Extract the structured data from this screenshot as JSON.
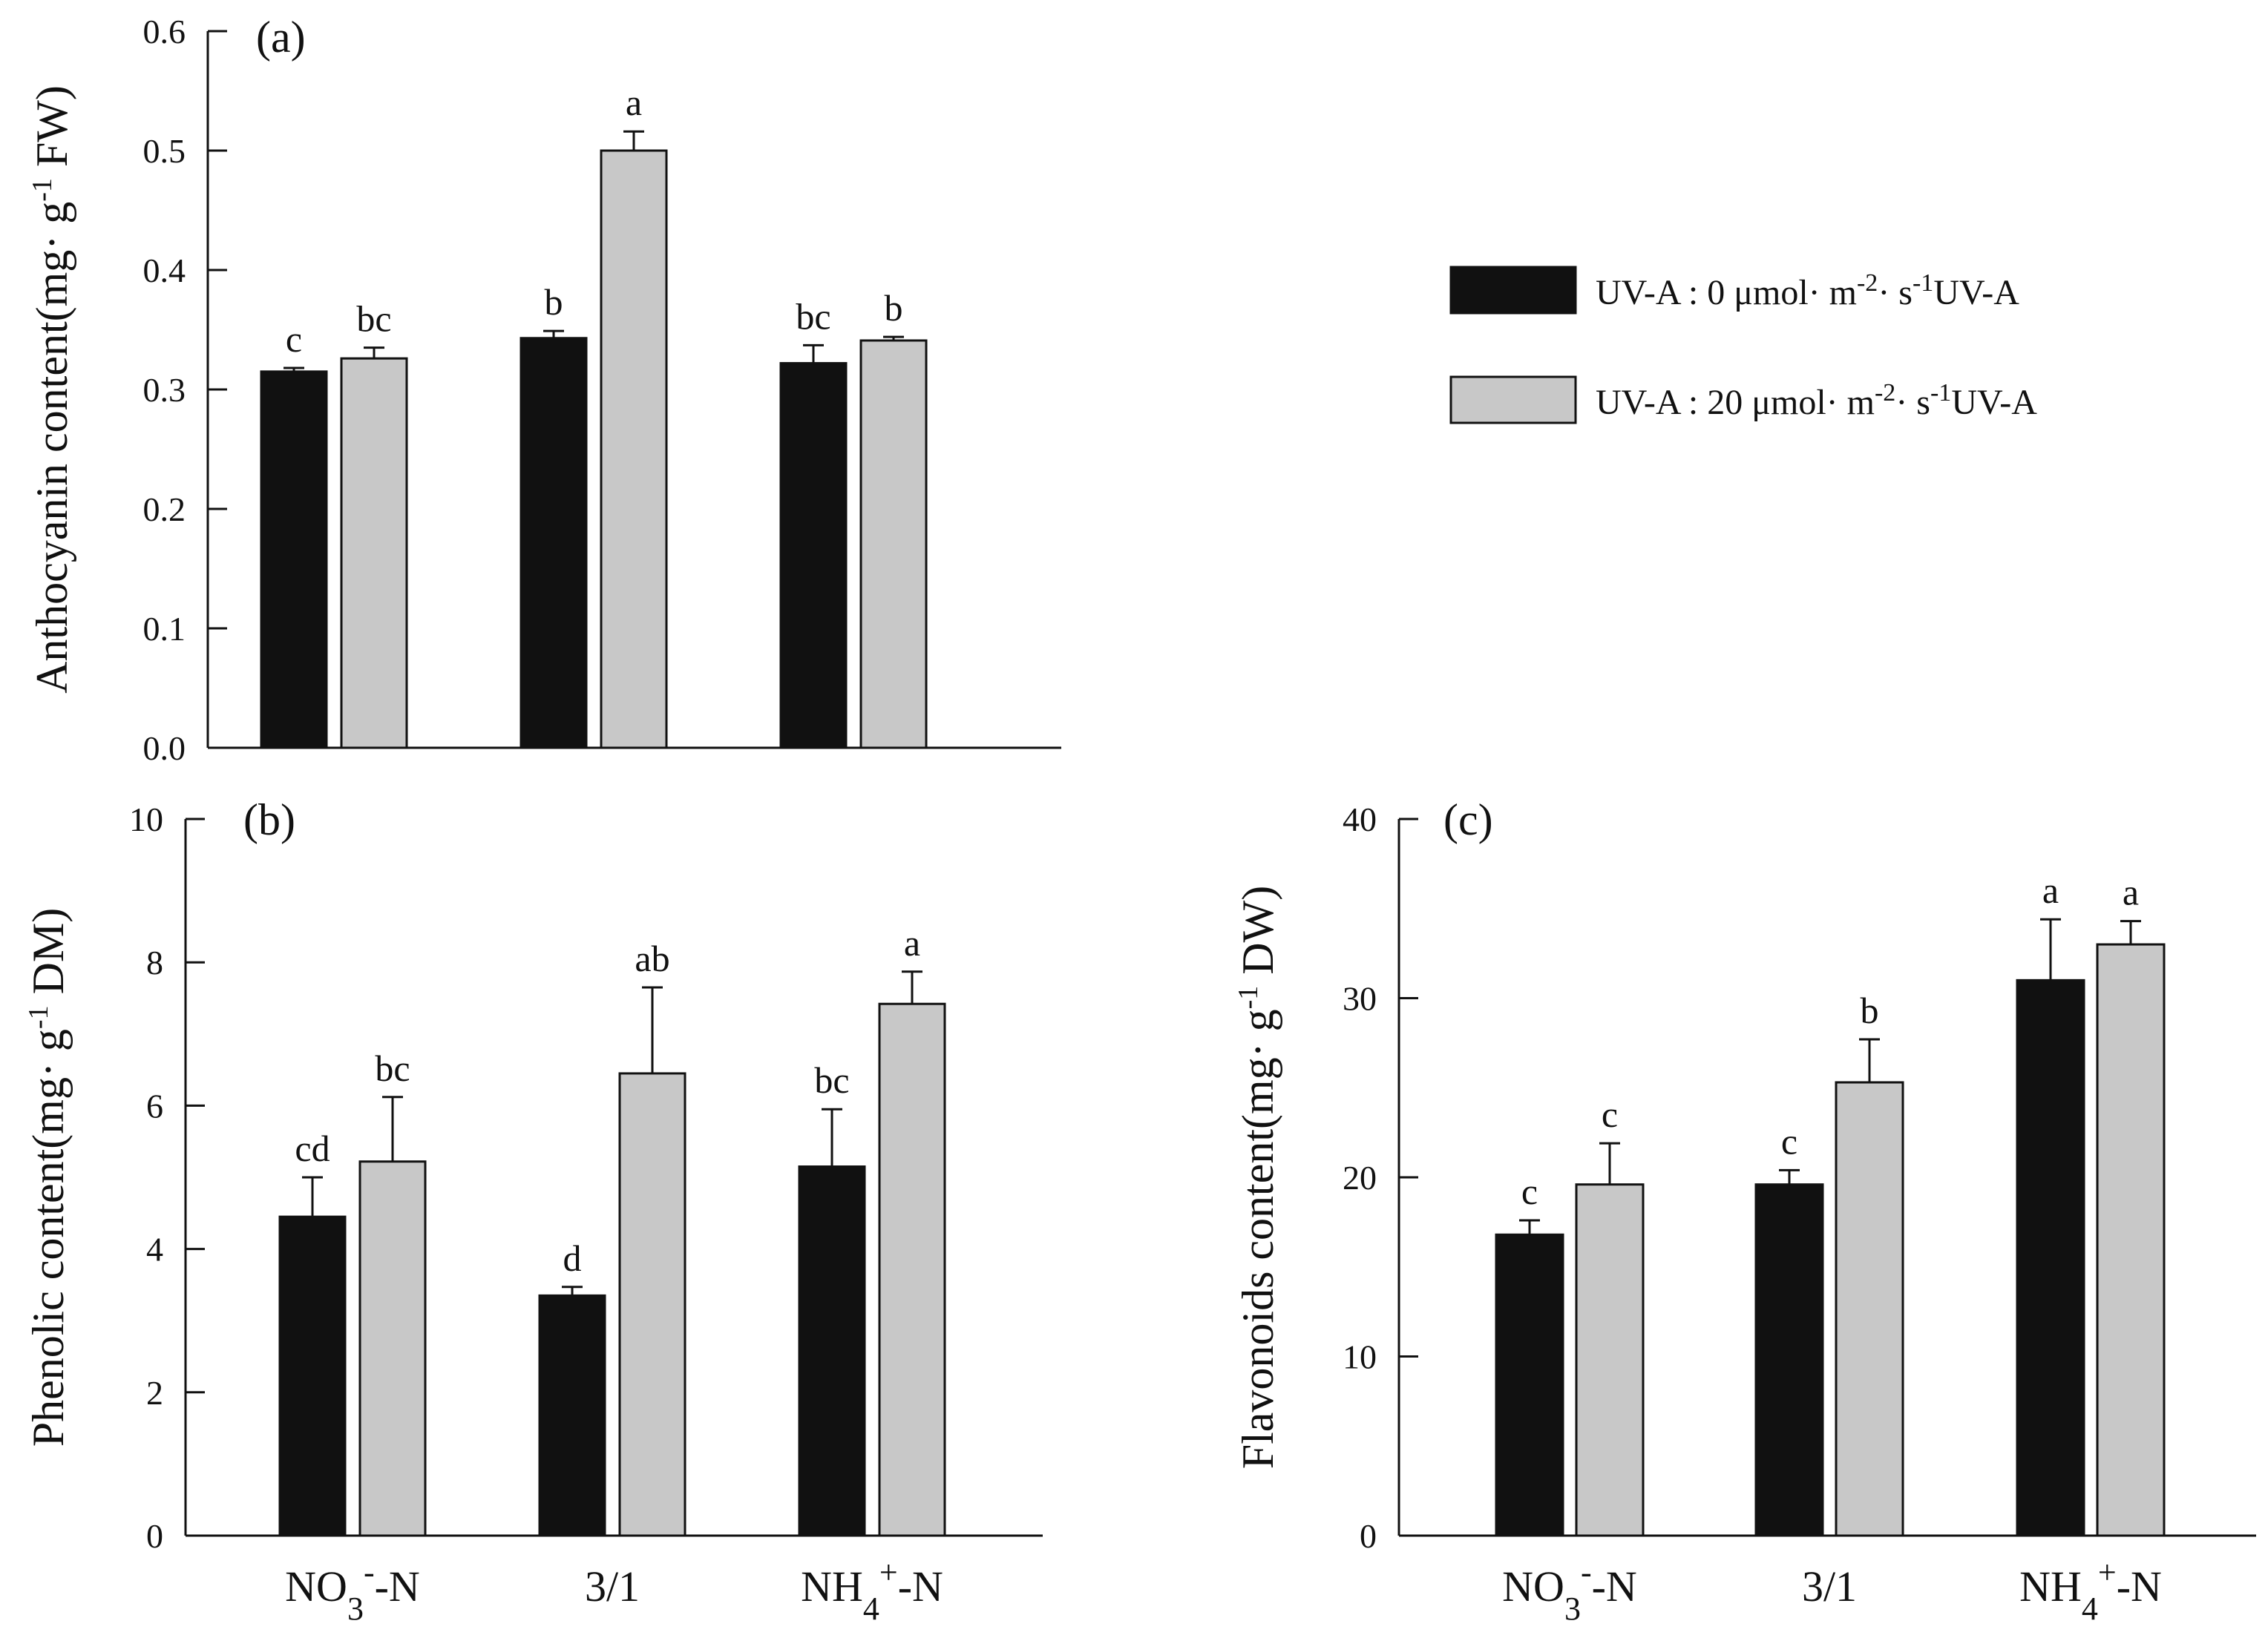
{
  "legend": {
    "items": [
      {
        "prefix": "UV-A : 0 μmol·  m",
        "sup1": "-2",
        "mid": "·  s",
        "sup2": "-1",
        "suffix": "UV-A"
      },
      {
        "prefix": "UV-A : 20 μmol·  m",
        "sup1": "-2",
        "mid": "·  s",
        "sup2": "-1",
        "suffix": "UV-A"
      }
    ]
  },
  "colors": {
    "series_dark": "#111111",
    "series_light": "#c8c8c8",
    "axis": "#111111"
  },
  "chart_data": [
    {
      "type": "bar",
      "panel_label": "(a)",
      "title": "",
      "categories": [
        {
          "base": "NO",
          "sub": "3",
          "sup": "-",
          "tail": "-N"
        },
        {
          "base": "3/1",
          "sub": "",
          "sup": "",
          "tail": ""
        },
        {
          "base": "NH",
          "sub": "4",
          "sup": "+",
          "tail": "-N"
        }
      ],
      "show_category_labels": false,
      "ylabel": {
        "pre": "Anthocyanin content(mg·  g",
        "sup": "-1",
        "post": " FW)"
      },
      "ylim": [
        0,
        0.6
      ],
      "yticks": [
        "0.0",
        "0.1",
        "0.2",
        "0.3",
        "0.4",
        "0.5",
        "0.6"
      ],
      "series": [
        {
          "name": "UV-A : 0 μmol·m-2·s-1 UV-A",
          "values": [
            0.315,
            0.343,
            0.322
          ],
          "errors": [
            0.003,
            0.006,
            0.015
          ],
          "letters": [
            "c",
            "b",
            "bc"
          ]
        },
        {
          "name": "UV-A : 20 μmol·m-2·s-1 UV-A",
          "values": [
            0.326,
            0.5,
            0.341
          ],
          "errors": [
            0.009,
            0.016,
            0.003
          ],
          "letters": [
            "bc",
            "a",
            "b"
          ]
        }
      ]
    },
    {
      "type": "bar",
      "panel_label": "(b)",
      "title": "",
      "categories": [
        {
          "base": "NO",
          "sub": "3",
          "sup": "-",
          "tail": "-N"
        },
        {
          "base": "3/1",
          "sub": "",
          "sup": "",
          "tail": ""
        },
        {
          "base": "NH",
          "sub": "4",
          "sup": "+",
          "tail": "-N"
        }
      ],
      "show_category_labels": true,
      "ylabel": {
        "pre": "Phenolic content(mg·  g",
        "sup": "-1",
        "post": " DM)"
      },
      "ylim": [
        0,
        10
      ],
      "yticks": [
        "0",
        "2",
        "4",
        "6",
        "8",
        "10"
      ],
      "series": [
        {
          "name": "UV-A : 0 μmol·m-2·s-1 UV-A",
          "values": [
            4.45,
            3.35,
            5.15
          ],
          "errors": [
            0.55,
            0.12,
            0.8
          ],
          "letters": [
            "cd",
            "d",
            "bc"
          ]
        },
        {
          "name": "UV-A : 20 μmol·m-2·s-1 UV-A",
          "values": [
            5.22,
            6.45,
            7.42
          ],
          "errors": [
            0.9,
            1.2,
            0.45
          ],
          "letters": [
            "bc",
            "ab",
            "a"
          ]
        }
      ]
    },
    {
      "type": "bar",
      "panel_label": "(c)",
      "title": "",
      "categories": [
        {
          "base": "NO",
          "sub": "3",
          "sup": "-",
          "tail": "-N"
        },
        {
          "base": "3/1",
          "sub": "",
          "sup": "",
          "tail": ""
        },
        {
          "base": "NH",
          "sub": "4",
          "sup": "+",
          "tail": "-N"
        }
      ],
      "show_category_labels": true,
      "ylabel": {
        "pre": "Flavonoids content(mg·  g",
        "sup": "-1",
        "post": " DW)"
      },
      "ylim": [
        0,
        40
      ],
      "yticks": [
        "0",
        "10",
        "20",
        "30",
        "40"
      ],
      "series": [
        {
          "name": "UV-A : 0 μmol·m-2·s-1 UV-A",
          "values": [
            16.8,
            19.6,
            31.0
          ],
          "errors": [
            0.8,
            0.8,
            3.4
          ],
          "letters": [
            "c",
            "c",
            "a"
          ]
        },
        {
          "name": "UV-A : 20 μmol·m-2·s-1 UV-A",
          "values": [
            19.6,
            25.3,
            33.0
          ],
          "errors": [
            2.3,
            2.4,
            1.3
          ],
          "letters": [
            "c",
            "b",
            "a"
          ]
        }
      ]
    }
  ]
}
